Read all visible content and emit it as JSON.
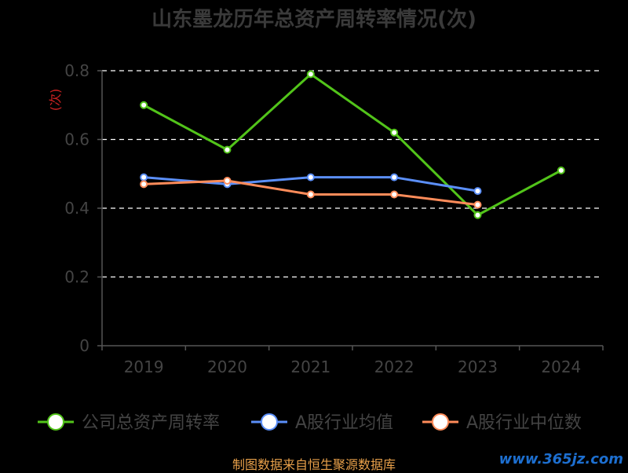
{
  "chart_data": {
    "type": "line",
    "title": "山东墨龙历年总资产周转率情况(次)",
    "ylabel": "(次)",
    "xlabel": "",
    "categories": [
      "2019",
      "2020",
      "2021",
      "2022",
      "2023",
      "2024"
    ],
    "ylim": [
      0,
      0.8
    ],
    "yticks": [
      "0",
      "0.2",
      "0.4",
      "0.6",
      "0.8"
    ],
    "grid": "horizontal-dashed",
    "legend_position": "bottom",
    "series": [
      {
        "name": "公司总资产周转率",
        "color": "#52c41a",
        "values": [
          0.7,
          0.57,
          0.79,
          0.62,
          0.38,
          0.51
        ]
      },
      {
        "name": "A股行业均值",
        "color": "#5b8ff9",
        "values": [
          0.49,
          0.47,
          0.49,
          0.49,
          0.45,
          null
        ]
      },
      {
        "name": "A股行业中位数",
        "color": "#ff8c5a",
        "values": [
          0.47,
          0.48,
          0.44,
          0.44,
          0.41,
          null
        ]
      }
    ]
  },
  "source_text": "制图数据来自恒生聚源数据库",
  "watermark": "www.365jz.com",
  "colors": {
    "grid": "#ffffff",
    "axis": "#555555",
    "tick_label": "#444444",
    "ylabel": "#cc2222"
  }
}
